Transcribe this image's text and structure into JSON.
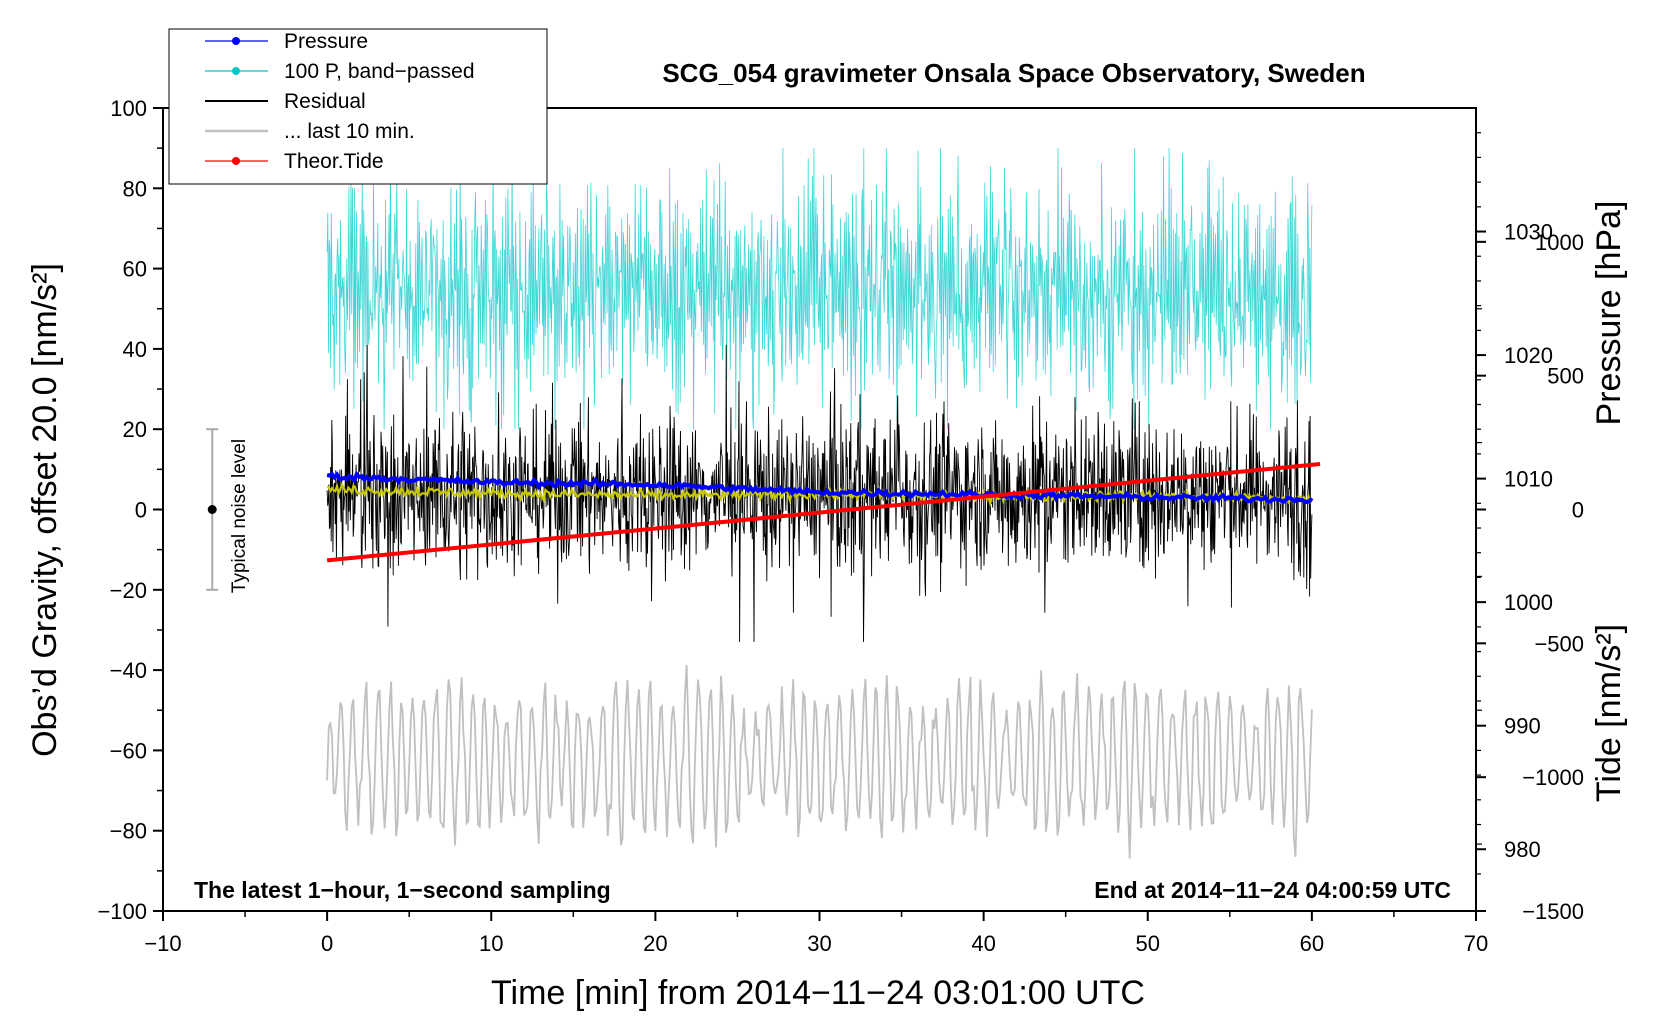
{
  "chart_data": {
    "type": "line",
    "title": "SCG_054 gravimeter Onsala Space Observatory, Sweden",
    "xlabel": "Time [min] from 2014−11−24 03:01:00 UTC",
    "ylabel": "Obs’d Gravity, offset 20.0 [nm/s²]",
    "ylabel_right_pressure": "Pressure [hPa]",
    "ylabel_right_tide": "Tide [nm/s²]",
    "xlim": [
      -10,
      70
    ],
    "ylim": [
      -100,
      100
    ],
    "pressure_lim": [
      975,
      1040
    ],
    "tide_lim": [
      -1500,
      1500
    ],
    "x_ticks": [
      -10,
      0,
      10,
      20,
      30,
      40,
      50,
      60,
      70
    ],
    "x_tick_labels": [
      "−10",
      "0",
      "10",
      "20",
      "30",
      "40",
      "50",
      "60",
      "70"
    ],
    "y_ticks": [
      -100,
      -80,
      -60,
      -40,
      -20,
      0,
      20,
      40,
      60,
      80,
      100
    ],
    "y_tick_labels": [
      "−100",
      "−80",
      "−60",
      "−40",
      "−20",
      "0",
      "20",
      "40",
      "60",
      "80",
      "100"
    ],
    "pressure_ticks": [
      980,
      990,
      1000,
      1010,
      1020,
      1030
    ],
    "pressure_tick_labels": [
      "980",
      "990",
      "1000",
      "1010",
      "1020",
      "1030"
    ],
    "tide_ticks": [
      -1500,
      -1000,
      -500,
      0,
      500,
      1000
    ],
    "tide_tick_labels": [
      "−1500",
      "−1000",
      "−500",
      "0",
      "500",
      "1000"
    ],
    "legend_position": "top-left",
    "series": [
      {
        "name": "Pressure",
        "color": "#0000ff",
        "x": [
          0,
          10,
          20,
          30,
          40,
          50,
          60
        ],
        "values": [
          1010.2,
          1009.7,
          1009.5,
          1008.9,
          1008.7,
          1008.5,
          1008.3
        ]
      },
      {
        "name": "100 P, band−passed",
        "color": "#00c8c8",
        "x_range": [
          0,
          60
        ],
        "approx_range": [
          20,
          90
        ]
      },
      {
        "name": "Residual",
        "color": "#000000",
        "x_range": [
          0,
          60
        ],
        "approx_range": [
          -33,
          41
        ]
      },
      {
        "name": "... last 10 min.",
        "color": "#c0c0c0",
        "x_range": [
          0,
          60
        ],
        "approx_range": [
          -87,
          -37
        ]
      },
      {
        "name": "Theor.Tide",
        "color": "#ff0000",
        "x": [
          0,
          60.5
        ],
        "values": [
          -190,
          170
        ]
      }
    ],
    "smoothed_residual": {
      "color": "#c8c800",
      "x": [
        0,
        10,
        20,
        30,
        40,
        50,
        60
      ],
      "values": [
        5,
        4,
        3.5,
        3.8,
        3.2,
        3.5,
        2.5
      ]
    },
    "noise_bar": {
      "label": "Typical noise level",
      "x": -7,
      "center": 0,
      "range": [
        -20,
        20
      ]
    },
    "notes": {
      "bottom_left": "The latest 1−hour, 1−second sampling",
      "bottom_right": "End at 2014−11−24 04:00:59 UTC"
    }
  }
}
